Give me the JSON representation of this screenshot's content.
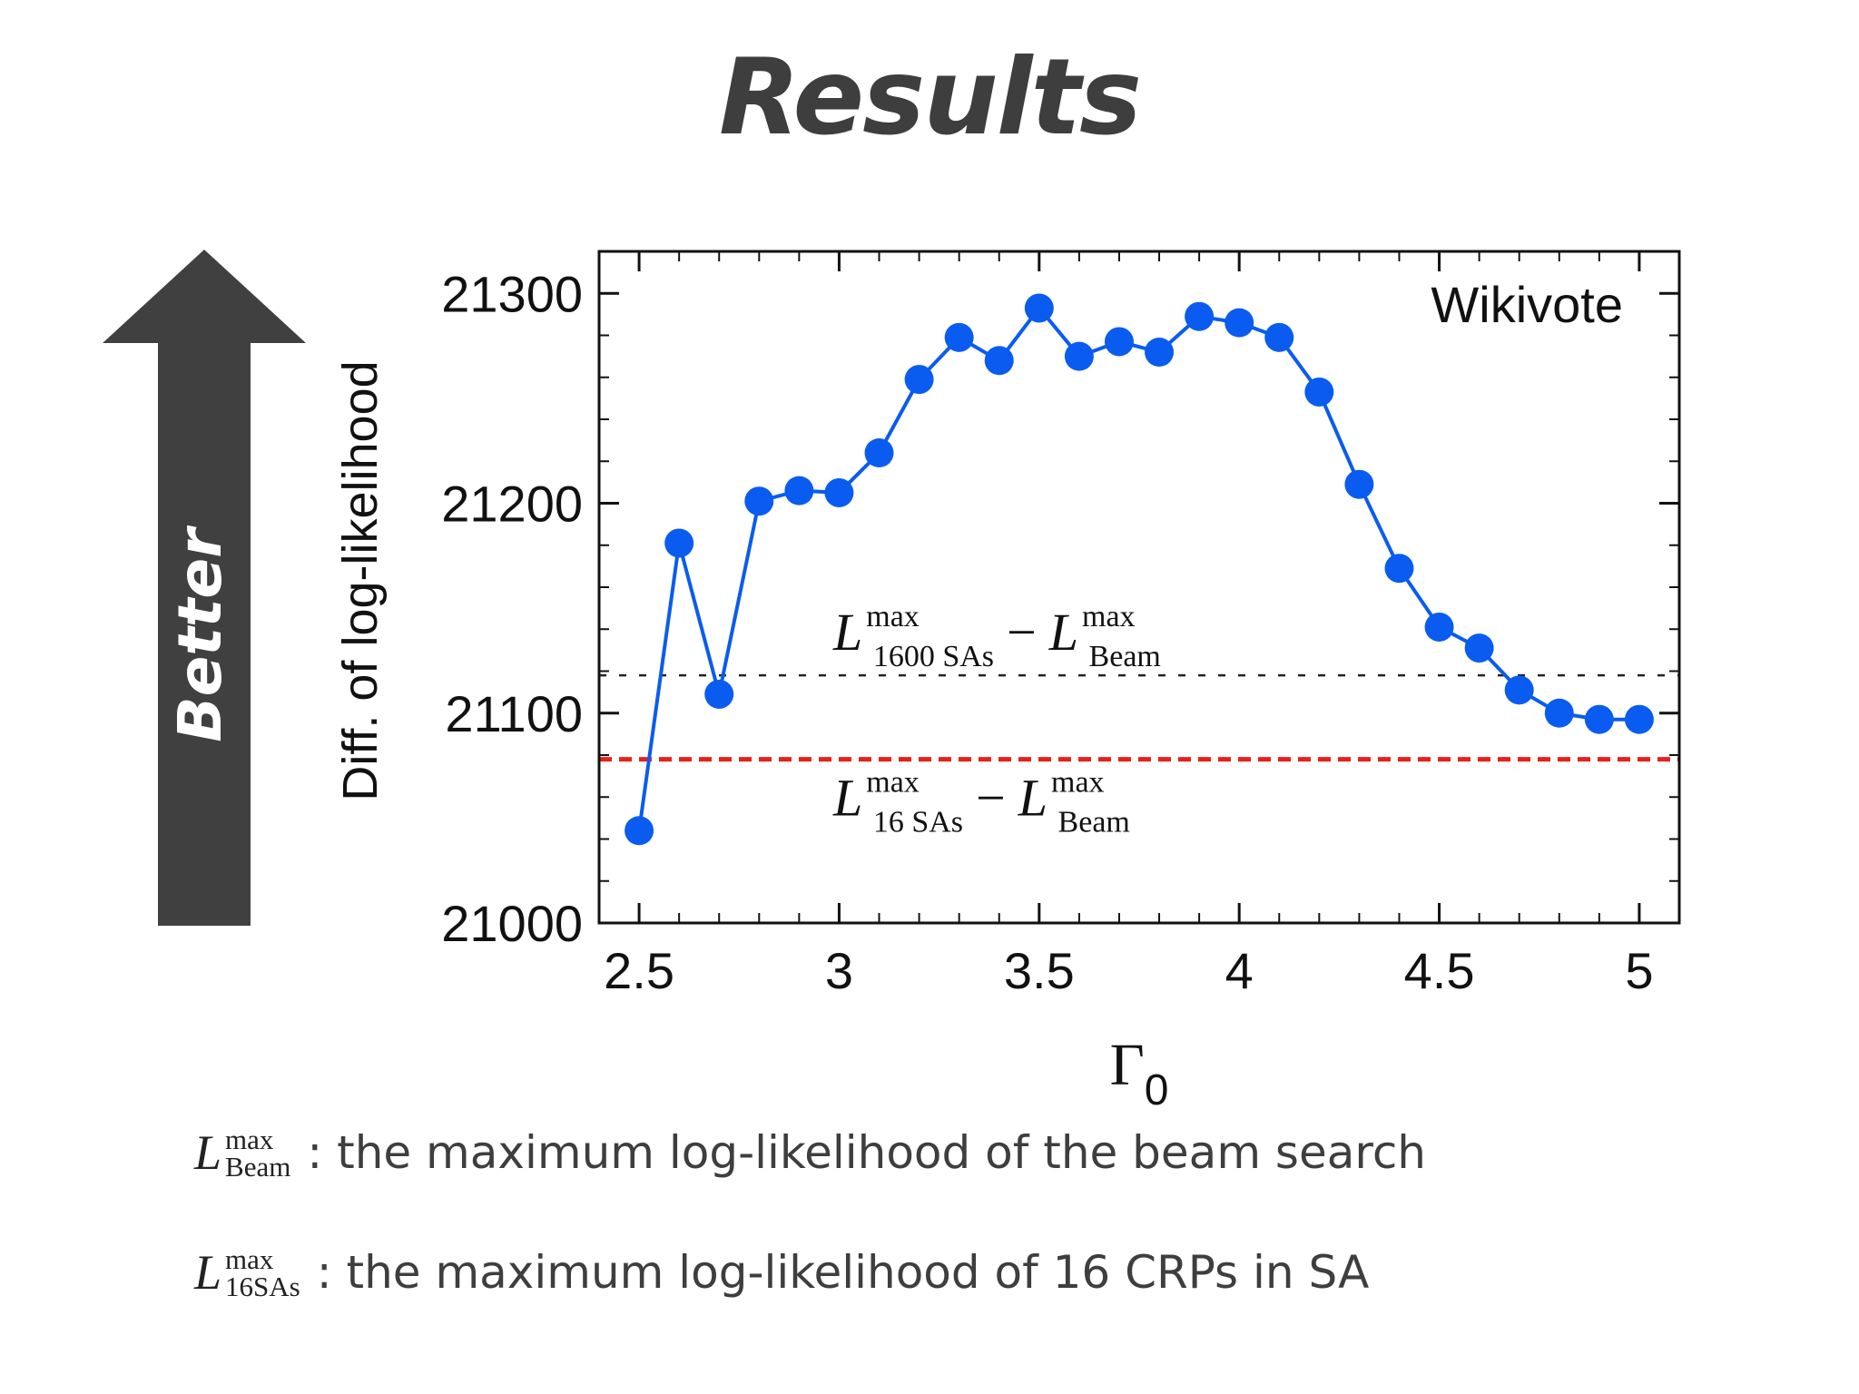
{
  "slide": {
    "title": "Results"
  },
  "arrow": {
    "label": "Better",
    "color": "#404040"
  },
  "chart_data": {
    "type": "line",
    "dataset_label": "Wikivote",
    "xlabel_symbol": "Γ",
    "xlabel_subscript": "0",
    "ylabel": "Diff. of log-likelihood",
    "xlim": [
      2.4,
      5.1
    ],
    "ylim": [
      21000,
      21320
    ],
    "xticks": [
      "2.5",
      "3",
      "3.5",
      "4",
      "4.5",
      "5"
    ],
    "xtick_values": [
      2.5,
      3,
      3.5,
      4,
      4.5,
      5
    ],
    "yticks": [
      "21000",
      "21100",
      "21200",
      "21300"
    ],
    "ytick_values": [
      21000,
      21100,
      21200,
      21300
    ],
    "series": [
      {
        "color": "#0a5cf0",
        "x": [
          2.5,
          2.6,
          2.7,
          2.8,
          2.9,
          3.0,
          3.1,
          3.2,
          3.3,
          3.4,
          3.5,
          3.6,
          3.7,
          3.8,
          3.9,
          4.0,
          4.1,
          4.2,
          4.3,
          4.4,
          4.5,
          4.6,
          4.7,
          4.8,
          4.9,
          5.0
        ],
        "y": [
          21044,
          21181,
          21109,
          21201,
          21206,
          21205,
          21224,
          21259,
          21279,
          21268,
          21293,
          21270,
          21277,
          21272,
          21289,
          21286,
          21279,
          21253,
          21209,
          21169,
          21141,
          21131,
          21111,
          21100,
          21097,
          21097
        ]
      }
    ],
    "reference_lines": [
      {
        "y": 21118,
        "color": "#222222",
        "style": "dotted",
        "label_main": "L",
        "label_sup": "max",
        "label_sub": "1600 SAs",
        "label_minus": "−",
        "label_main2": "L",
        "label_sup2": "max",
        "label_sub2": "Beam"
      },
      {
        "y": 21078,
        "color": "#e8201a",
        "style": "dashed",
        "label_main": "L",
        "label_sup": "max",
        "label_sub": "16 SAs",
        "label_minus": "−",
        "label_main2": "L",
        "label_sup2": "max",
        "label_sub2": "Beam"
      }
    ]
  },
  "legend": [
    {
      "symbol": "L",
      "sup": "max",
      "sub": "Beam",
      "text": ": the maximum log-likelihood of the beam search"
    },
    {
      "symbol": "L",
      "sup": "max",
      "sub": "16SAs",
      "text": ": the maximum log-likelihood of 16 CRPs in SA"
    }
  ]
}
